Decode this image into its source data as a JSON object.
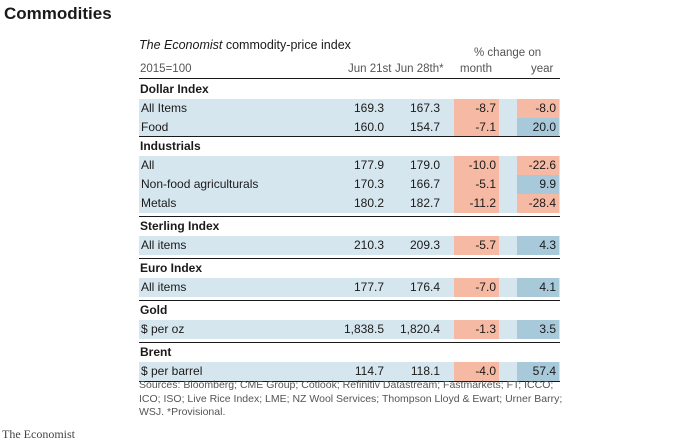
{
  "page_title": "Commodities",
  "table": {
    "title_italic": "The Economist",
    "title_rest": " commodity-price index",
    "base": "2015=100",
    "pct_header": "% change on",
    "columns": [
      "Jun 21st",
      "Jun 28th*",
      "month",
      "year"
    ]
  },
  "sections": [
    {
      "name": "Dollar Index",
      "rows": [
        {
          "label": "All Items",
          "jun21": "169.3",
          "jun28": "167.3",
          "month": "-8.7",
          "year": "-8.0",
          "month_sign": "neg",
          "year_sign": "neg"
        },
        {
          "label": "Food",
          "jun21": "160.0",
          "jun28": "154.7",
          "month": "-7.1",
          "year": "20.0",
          "month_sign": "neg",
          "year_sign": "pos"
        }
      ]
    },
    {
      "name": "Industrials",
      "rows": [
        {
          "label": "All",
          "jun21": "177.9",
          "jun28": "179.0",
          "month": "-10.0",
          "year": "-22.6",
          "month_sign": "neg",
          "year_sign": "neg"
        },
        {
          "label": "Non-food agriculturals",
          "jun21": "170.3",
          "jun28": "166.7",
          "month": "-5.1",
          "year": "9.9",
          "month_sign": "neg",
          "year_sign": "pos"
        },
        {
          "label": "Metals",
          "jun21": "180.2",
          "jun28": "182.7",
          "month": "-11.2",
          "year": "-28.4",
          "month_sign": "neg",
          "year_sign": "neg"
        }
      ]
    },
    {
      "name": "Sterling Index",
      "rows": [
        {
          "label": "All items",
          "jun21": "210.3",
          "jun28": "209.3",
          "month": "-5.7",
          "year": "4.3",
          "month_sign": "neg",
          "year_sign": "pos"
        }
      ]
    },
    {
      "name": "Euro Index",
      "rows": [
        {
          "label": "All items",
          "jun21": "177.7",
          "jun28": "176.4",
          "month": "-7.0",
          "year": "4.1",
          "month_sign": "neg",
          "year_sign": "pos"
        }
      ]
    },
    {
      "name": "Gold",
      "rows": [
        {
          "label": "$ per oz",
          "jun21": "1,838.5",
          "jun28": "1,820.4",
          "month": "-1.3",
          "year": "3.5",
          "month_sign": "neg",
          "year_sign": "pos"
        }
      ]
    },
    {
      "name": "Brent",
      "rows": [
        {
          "label": "$ per barrel",
          "jun21": "114.7",
          "jun28": "118.1",
          "month": "-4.0",
          "year": "57.4",
          "month_sign": "neg",
          "year_sign": "pos"
        }
      ]
    }
  ],
  "sources": "Sources: Bloomberg; CME Group; Cotlook; Refinitiv Datastream; Fastmarkets; FT; ICCO; ICO; ISO; Live Rice Index; LME; NZ Wool Services; Thompson Lloyd & Ewart; Urner Barry; WSJ. *Provisional.",
  "brand": "The Economist",
  "colors": {
    "negative": "#f6b9a3",
    "positive": "#a8c9d9",
    "row_shade": "#d6e6ee"
  }
}
